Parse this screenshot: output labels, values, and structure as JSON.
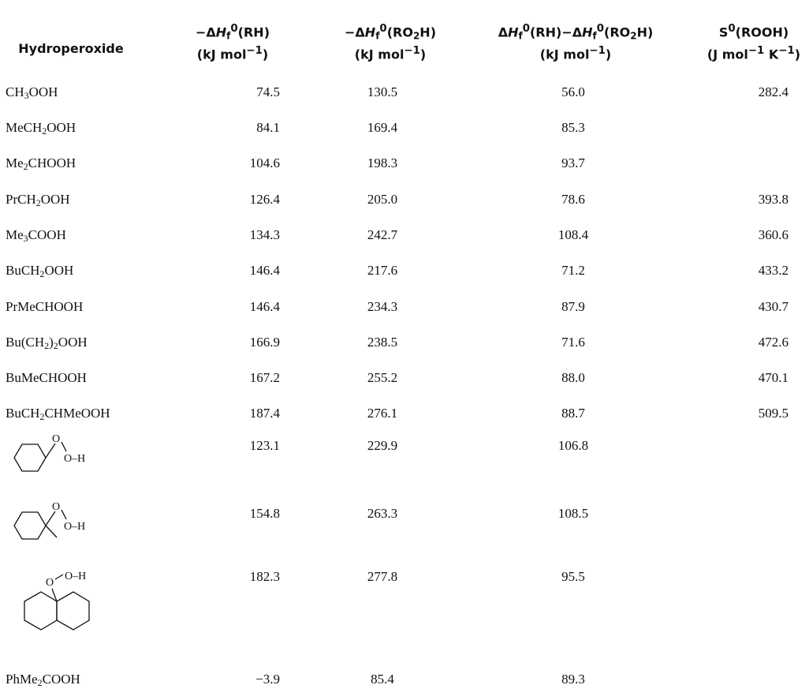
{
  "headers": {
    "col0": "Hydroperoxide",
    "col1": {
      "line1": "−ΔHf0(RH)",
      "line2": "(kJ mol−1)"
    },
    "col2": {
      "line1": "−ΔHf0(RO2H)",
      "line2": "(kJ mol−1)"
    },
    "col3": {
      "line1": "ΔHf0(RH)−ΔHf0(RO2H)",
      "line2": "(kJ mol−1)"
    },
    "col4": {
      "line1": "S0(ROOH)",
      "line2": "(J mol−1 K−1)"
    }
  },
  "rows": [
    {
      "name": "CH3OOH",
      "rh": "74.5",
      "ro2h": "130.5",
      "diff": "56.0",
      "s0": "282.4"
    },
    {
      "name": "MeCH2OOH",
      "rh": "84.1",
      "ro2h": "169.4",
      "diff": "85.3",
      "s0": ""
    },
    {
      "name": "Me2CHOOH",
      "rh": "104.6",
      "ro2h": "198.3",
      "diff": "93.7",
      "s0": ""
    },
    {
      "name": "PrCH2OOH",
      "rh": "126.4",
      "ro2h": "205.0",
      "diff": "78.6",
      "s0": "393.8"
    },
    {
      "name": "Me3COOH",
      "rh": "134.3",
      "ro2h": "242.7",
      "diff": "108.4",
      "s0": "360.6"
    },
    {
      "name": "BuCH2OOH",
      "rh": "146.4",
      "ro2h": "217.6",
      "diff": "71.2",
      "s0": "433.2"
    },
    {
      "name": "PrMeCHOOH",
      "rh": "146.4",
      "ro2h": "234.3",
      "diff": "87.9",
      "s0": "430.7"
    },
    {
      "name": "Bu(CH2)2OOH",
      "rh": "166.9",
      "ro2h": "238.5",
      "diff": "71.6",
      "s0": "472.6"
    },
    {
      "name": "BuMeCHOOH",
      "rh": "167.2",
      "ro2h": "255.2",
      "diff": "88.0",
      "s0": "470.1"
    },
    {
      "name": "BuCH2CHMeOOH",
      "rh": "187.4",
      "ro2h": "276.1",
      "diff": "88.7",
      "s0": "509.5"
    },
    {
      "structure": "cyclohexyl-hydroperoxide",
      "rh": "123.1",
      "ro2h": "229.9",
      "diff": "106.8",
      "s0": ""
    },
    {
      "structure": "methylcyclohexyl-hydroperoxide",
      "rh": "154.8",
      "ro2h": "263.3",
      "diff": "108.5",
      "s0": ""
    },
    {
      "structure": "decalin-hydroperoxide",
      "rh": "182.3",
      "ro2h": "277.8",
      "diff": "95.5",
      "s0": ""
    },
    {
      "name": "PhMe2COOH",
      "rh": "−3.9",
      "ro2h": "85.4",
      "diff": "89.3",
      "s0": ""
    }
  ],
  "structure_labels": {
    "oxygen": "O",
    "oh": "O–H"
  }
}
